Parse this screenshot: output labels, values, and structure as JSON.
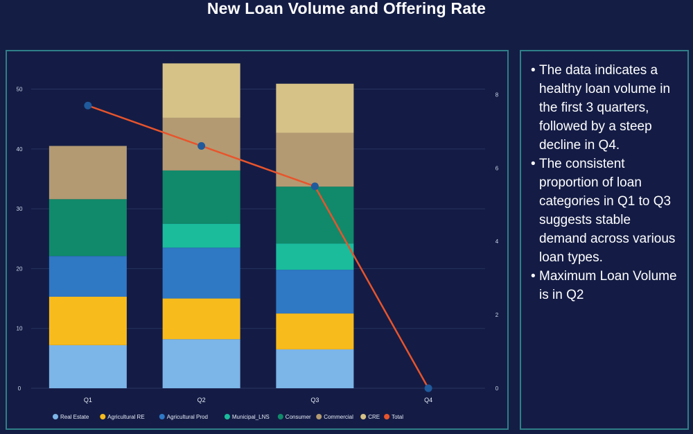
{
  "title": "New Loan Volume and Offering Rate",
  "chart_data": {
    "type": "bar",
    "stacked": true,
    "categories": [
      "Q1",
      "Q2",
      "Q3",
      "Q4"
    ],
    "y_left_ticks": [
      "0",
      "10",
      "20",
      "30",
      "40",
      "50"
    ],
    "y_right_ticks": [
      "0",
      "2",
      "4",
      "6",
      "8"
    ],
    "ylim_left": [
      0,
      54
    ],
    "ylim_right": [
      0,
      8.8
    ],
    "grid": true,
    "legend_position": "bottom",
    "series": [
      {
        "name": "Real Estate",
        "color": "#7cb5e8",
        "values": [
          7.2,
          8.2,
          6.5,
          0
        ]
      },
      {
        "name": "Agricultural RE",
        "color": "#f8bb1c",
        "values": [
          8.1,
          6.8,
          6.0,
          0
        ]
      },
      {
        "name": "Agricultural Prod",
        "color": "#2f78c4",
        "values": [
          6.8,
          8.5,
          7.3,
          0
        ]
      },
      {
        "name": "Municipal_LNS",
        "color": "#1abc9c",
        "values": [
          0,
          4.0,
          4.4,
          0
        ]
      },
      {
        "name": "Consumer",
        "color": "#108a6a",
        "values": [
          9.5,
          8.9,
          9.5,
          0
        ]
      },
      {
        "name": "Commercial",
        "color": "#b39a72",
        "values": [
          8.9,
          8.8,
          9.0,
          0
        ]
      },
      {
        "name": "CRE",
        "color": "#d6c287",
        "values": [
          0,
          9.1,
          8.2,
          0
        ]
      }
    ],
    "line": {
      "name": "Total",
      "color": "#e8542c",
      "marker_color": "#1f5a9c",
      "values": [
        7.7,
        6.6,
        5.5,
        0
      ]
    }
  },
  "notes": [
    "The data indicates a healthy loan volume in the first 3 quarters, followed by a steep decline in Q4.",
    "The consistent proportion of loan categories in Q1 to Q3 suggests stable demand across various loan types.",
    "Maximum Loan Volume is in Q2"
  ],
  "bullet_char": "•"
}
